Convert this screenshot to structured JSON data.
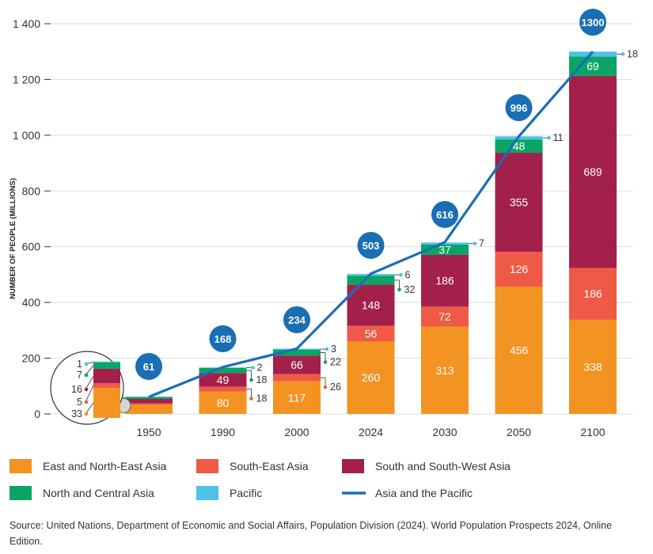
{
  "chart_data": {
    "type": "bar",
    "stacked": true,
    "categories": [
      "1950",
      "1990",
      "2000",
      "2024",
      "2030",
      "2050",
      "2100"
    ],
    "series": [
      {
        "name": "East and North-East Asia",
        "key": "east",
        "color": "#f39321",
        "values": [
          33,
          80,
          117,
          260,
          313,
          456,
          338
        ]
      },
      {
        "name": "South-East Asia",
        "key": "southeast",
        "color": "#ef5a46",
        "values": [
          5,
          18,
          26,
          56,
          72,
          126,
          186
        ]
      },
      {
        "name": "South and South-West Asia",
        "key": "south",
        "color": "#a3204b",
        "values": [
          16,
          49,
          66,
          148,
          186,
          355,
          689
        ]
      },
      {
        "name": "North and Central Asia",
        "key": "north",
        "color": "#0aa565",
        "values": [
          7,
          18,
          22,
          32,
          37,
          48,
          69
        ]
      },
      {
        "name": "Pacific",
        "key": "pacific",
        "color": "#4dc1ea",
        "values": [
          1,
          2,
          3,
          6,
          7,
          11,
          18
        ]
      }
    ],
    "line": {
      "name": "Asia and the Pacific",
      "color": "#1a6eb5",
      "values": [
        61,
        168,
        234,
        503,
        616,
        996,
        1300
      ],
      "labels": [
        "61",
        "168",
        "234",
        "503",
        "616",
        "996",
        "1300"
      ]
    },
    "ylabel": "NUMBER OF PEOPLE (MILLIONS)",
    "xlabel": "",
    "ylim": [
      0,
      1400
    ],
    "yticks": [
      0,
      200,
      400,
      600,
      800,
      1000,
      1200,
      1400
    ],
    "ytick_labels": [
      "0",
      "200",
      "400",
      "600",
      "800",
      "1 000",
      "1 200",
      "1 400"
    ],
    "segment_labels": {
      "east": [
        "",
        "80",
        "117",
        "260",
        "313",
        "456",
        "338"
      ],
      "southeast": [
        "",
        "",
        "",
        "56",
        "72",
        "126",
        "186"
      ],
      "south": [
        "",
        "49",
        "66",
        "148",
        "186",
        "355",
        "689"
      ],
      "north": [
        "",
        "",
        "",
        "",
        "37",
        "48",
        "69"
      ]
    },
    "callout_labels": {
      "pacific": [
        "",
        "2",
        "3",
        "6",
        "7",
        "11",
        "18"
      ],
      "north": [
        "",
        "18",
        "22",
        "32",
        "",
        "",
        ""
      ],
      "southeast": [
        "",
        "18",
        "26",
        "",
        "",
        "",
        ""
      ]
    },
    "zoom_1950": {
      "values": [
        "1",
        "7",
        "16",
        "5",
        "33"
      ]
    },
    "legend": [
      "East and North-East Asia",
      "South-East Asia",
      "South and South-West Asia",
      "North and Central Asia",
      "Pacific",
      "Asia and the Pacific"
    ]
  },
  "source": "Source: United Nations, Department of Economic and Social Affairs, Population Division (2024). World Population Prospects 2024, Online Edition."
}
